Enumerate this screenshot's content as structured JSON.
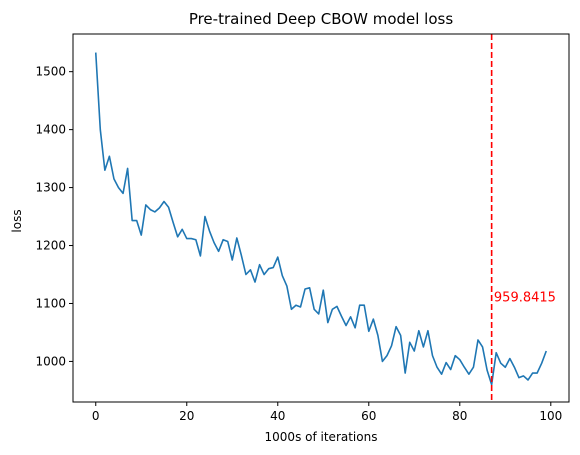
{
  "chart_data": {
    "type": "line",
    "title": "Pre-trained Deep CBOW model loss",
    "xlabel": "1000s of iterations",
    "ylabel": "loss",
    "xlim": [
      -5,
      104
    ],
    "ylim": [
      930,
      1565
    ],
    "xticks": [
      0,
      20,
      40,
      60,
      80,
      100
    ],
    "yticks": [
      1000,
      1100,
      1200,
      1300,
      1400,
      1500
    ],
    "grid": false,
    "series": [
      {
        "color": "#1f77b4",
        "x": [
          0,
          1,
          2,
          3,
          4,
          5,
          6,
          7,
          8,
          9,
          10,
          11,
          12,
          13,
          14,
          15,
          16,
          17,
          18,
          19,
          20,
          21,
          22,
          23,
          24,
          25,
          26,
          27,
          28,
          29,
          30,
          31,
          32,
          33,
          34,
          35,
          36,
          37,
          38,
          39,
          40,
          41,
          42,
          43,
          44,
          45,
          46,
          47,
          48,
          49,
          50,
          51,
          52,
          53,
          54,
          55,
          56,
          57,
          58,
          59,
          60,
          61,
          62,
          63,
          64,
          65,
          66,
          67,
          68,
          69,
          70,
          71,
          72,
          73,
          74,
          75,
          76,
          77,
          78,
          79,
          80,
          81,
          82,
          83,
          84,
          85,
          86,
          87,
          88,
          89,
          90,
          91,
          92,
          93,
          94,
          95,
          96,
          97,
          98,
          99
        ],
        "y": [
          1533,
          1400,
          1330,
          1354,
          1315,
          1300,
          1290,
          1333,
          1243,
          1243,
          1218,
          1270,
          1262,
          1258,
          1265,
          1276,
          1266,
          1240,
          1215,
          1228,
          1212,
          1212,
          1210,
          1182,
          1250,
          1225,
          1205,
          1190,
          1210,
          1207,
          1175,
          1213,
          1183,
          1150,
          1158,
          1137,
          1167,
          1150,
          1160,
          1162,
          1180,
          1148,
          1130,
          1090,
          1097,
          1094,
          1125,
          1127,
          1090,
          1082,
          1123,
          1067,
          1090,
          1095,
          1078,
          1062,
          1077,
          1058,
          1097,
          1097,
          1052,
          1073,
          1045,
          1000,
          1010,
          1027,
          1060,
          1045,
          980,
          1033,
          1018,
          1053,
          1025,
          1053,
          1010,
          990,
          978,
          998,
          986,
          1010,
          1003,
          990,
          978,
          990,
          1037,
          1025,
          985,
          960,
          1015,
          997,
          990,
          1005,
          990,
          972,
          975,
          968,
          980,
          980,
          997,
          1018
        ]
      }
    ],
    "vline": {
      "x": 87,
      "color": "#ff0000",
      "style": "dashed"
    },
    "annotation": {
      "text": "959.8415",
      "x": 87.5,
      "y": 1110,
      "color": "#ff0000"
    }
  }
}
